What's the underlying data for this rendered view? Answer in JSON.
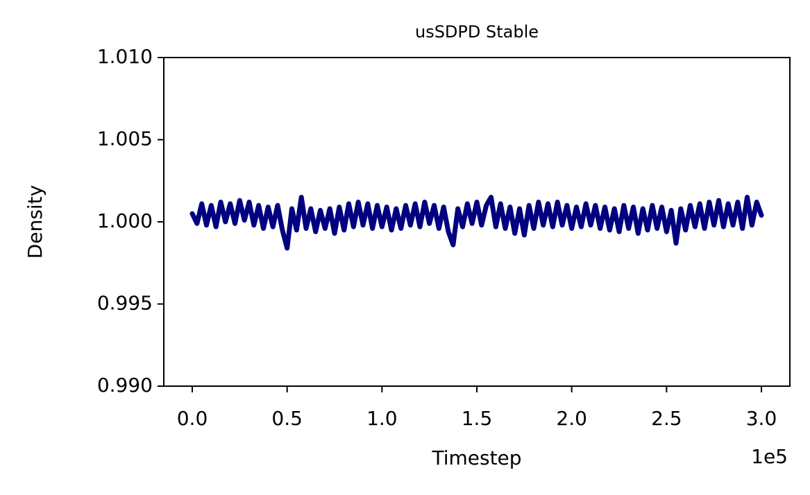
{
  "chart_data": {
    "type": "line",
    "title": "usSDPD Stable",
    "x_label": "Timestep",
    "y_label": "Density",
    "x_offset_label": "1e5",
    "x": [
      0,
      2500,
      5000,
      7500,
      10000,
      12500,
      15000,
      17500,
      20000,
      22500,
      25000,
      27500,
      30000,
      32500,
      35000,
      37500,
      40000,
      42500,
      45000,
      47500,
      50000,
      52500,
      55000,
      57500,
      60000,
      62500,
      65000,
      67500,
      70000,
      72500,
      75000,
      77500,
      80000,
      82500,
      85000,
      87500,
      90000,
      92500,
      95000,
      97500,
      100000,
      102500,
      105000,
      107500,
      110000,
      112500,
      115000,
      117500,
      120000,
      122500,
      125000,
      127500,
      130000,
      132500,
      135000,
      137500,
      140000,
      142500,
      145000,
      147500,
      150000,
      152500,
      155000,
      157500,
      160000,
      162500,
      165000,
      167500,
      170000,
      172500,
      175000,
      177500,
      180000,
      182500,
      185000,
      187500,
      190000,
      192500,
      195000,
      197500,
      200000,
      202500,
      205000,
      207500,
      210000,
      212500,
      215000,
      217500,
      220000,
      222500,
      225000,
      227500,
      230000,
      232500,
      235000,
      237500,
      240000,
      242500,
      245000,
      247500,
      250000,
      252500,
      255000,
      257500,
      260000,
      262500,
      265000,
      267500,
      270000,
      272500,
      275000,
      277500,
      280000,
      282500,
      285000,
      287500,
      290000,
      292500,
      295000,
      297500,
      300000
    ],
    "series": [
      {
        "name": "Density",
        "color": "#000080",
        "values": [
          1.0005,
          0.9999,
          1.0011,
          0.9998,
          1.001,
          0.9997,
          1.0012,
          1.0,
          1.0011,
          0.9999,
          1.0013,
          1.0001,
          1.0012,
          0.9998,
          1.001,
          0.9996,
          1.0009,
          0.9997,
          1.001,
          0.9995,
          0.9984,
          1.0008,
          0.9995,
          1.0015,
          0.9996,
          1.0008,
          0.9994,
          1.0007,
          0.9996,
          1.0008,
          0.9993,
          1.0009,
          0.9995,
          1.0011,
          0.9997,
          1.0012,
          0.9998,
          1.0011,
          0.9996,
          1.001,
          0.9997,
          1.0009,
          0.9995,
          1.0008,
          0.9996,
          1.001,
          0.9998,
          1.0011,
          0.9997,
          1.0012,
          0.9999,
          1.001,
          0.9996,
          1.0009,
          0.9994,
          0.9986,
          1.0008,
          0.9997,
          1.0011,
          0.9999,
          1.0012,
          0.9998,
          1.001,
          1.0015,
          0.9997,
          1.0011,
          0.9996,
          1.0009,
          0.9993,
          1.0008,
          0.9992,
          1.001,
          0.9996,
          1.0012,
          0.9998,
          1.0011,
          0.9997,
          1.0012,
          0.9998,
          1.001,
          0.9996,
          1.0009,
          0.9997,
          1.0011,
          0.9998,
          1.001,
          0.9996,
          1.0009,
          0.9995,
          1.0008,
          0.9994,
          1.001,
          0.9996,
          1.0009,
          0.9993,
          1.0008,
          0.9995,
          1.001,
          0.9996,
          1.0009,
          0.9994,
          1.0007,
          0.9987,
          1.0008,
          0.9995,
          1.001,
          0.9997,
          1.0011,
          0.9996,
          1.0012,
          0.9998,
          1.0013,
          0.9997,
          1.0011,
          0.9998,
          1.0012,
          0.9996,
          1.0015,
          0.9998,
          1.0012,
          1.0004
        ]
      }
    ],
    "xlim": [
      -15000,
      315000
    ],
    "xticks": [
      {
        "value": 0,
        "label": "0.0"
      },
      {
        "value": 50000,
        "label": "0.5"
      },
      {
        "value": 100000,
        "label": "1.0"
      },
      {
        "value": 150000,
        "label": "1.5"
      },
      {
        "value": 200000,
        "label": "2.0"
      },
      {
        "value": 250000,
        "label": "2.5"
      },
      {
        "value": 300000,
        "label": "3.0"
      }
    ],
    "ylim": [
      0.99,
      1.01
    ],
    "yticks": [
      {
        "value": 0.99,
        "label": "0.990"
      },
      {
        "value": 0.995,
        "label": "0.995"
      },
      {
        "value": 1.0,
        "label": "1.000"
      },
      {
        "value": 1.005,
        "label": "1.005"
      },
      {
        "value": 1.01,
        "label": "1.010"
      }
    ],
    "grid": false
  }
}
